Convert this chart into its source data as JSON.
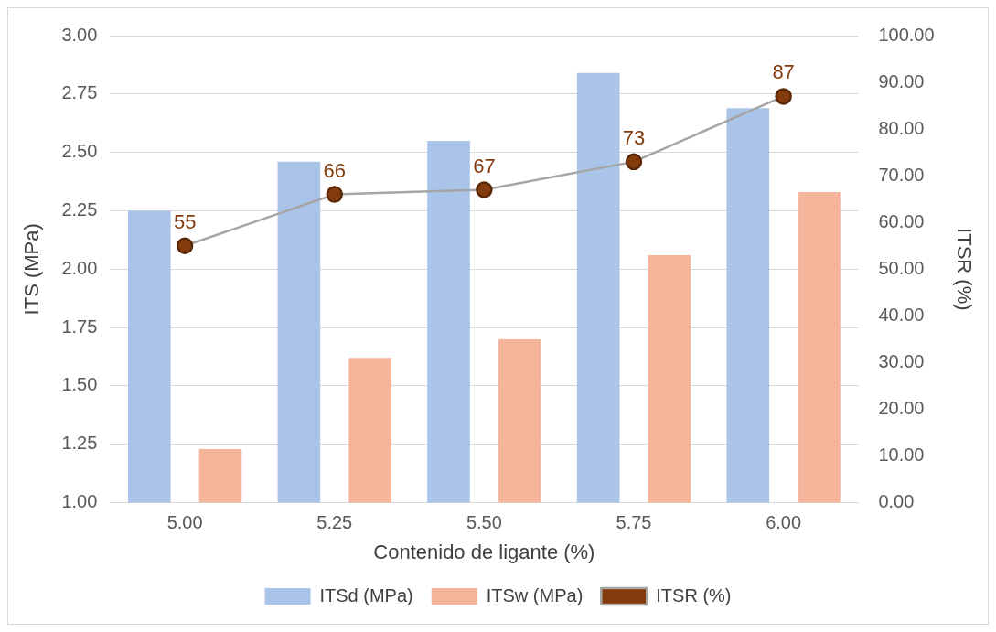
{
  "chart_data": {
    "type": "bar",
    "xlabel": "Contenido de ligante (%)",
    "ylabel": "ITS (MPa)",
    "y2label": "ITSR (%)",
    "categories": [
      "5.00",
      "5.25",
      "5.50",
      "5.75",
      "6.00"
    ],
    "series": [
      {
        "name": "ITSd (MPa)",
        "color": "#a9c4e8",
        "values": [
          2.25,
          2.46,
          2.55,
          2.84,
          2.69
        ]
      },
      {
        "name": "ITSw (MPa)",
        "color": "#f4b59a",
        "values": [
          1.23,
          1.62,
          1.7,
          2.06,
          2.33
        ]
      },
      {
        "name": "ITSR (%)",
        "type": "line",
        "axis": "y2",
        "color": "#a5a5a5",
        "values": [
          55,
          66,
          67,
          73,
          87
        ],
        "value_labels": [
          "55",
          "66",
          "67",
          "73",
          "87"
        ]
      }
    ],
    "ylim": [
      1,
      3
    ],
    "yticks": [
      {
        "value": 1,
        "label": "1.00"
      },
      {
        "value": 1.25,
        "label": "1.25"
      },
      {
        "value": 1.5,
        "label": "1.50"
      },
      {
        "value": 1.75,
        "label": "1.75"
      },
      {
        "value": 2,
        "label": "2.00"
      },
      {
        "value": 2.25,
        "label": "2.25"
      },
      {
        "value": 2.5,
        "label": "2.50"
      },
      {
        "value": 2.75,
        "label": "2.75"
      },
      {
        "value": 3,
        "label": "3.00"
      }
    ],
    "y2lim": [
      0,
      100
    ],
    "y2ticks": [
      {
        "value": 0,
        "label": "0.00"
      },
      {
        "value": 10,
        "label": "10.00"
      },
      {
        "value": 20,
        "label": "20.00"
      },
      {
        "value": 30,
        "label": "30.00"
      },
      {
        "value": 40,
        "label": "40.00"
      },
      {
        "value": 50,
        "label": "50.00"
      },
      {
        "value": 60,
        "label": "60.00"
      },
      {
        "value": 70,
        "label": "70.00"
      },
      {
        "value": 80,
        "label": "80.00"
      },
      {
        "value": 90,
        "label": "90.00"
      },
      {
        "value": 100,
        "label": "100.00"
      }
    ],
    "grid": "y",
    "legend": "bottom",
    "marker": "circle",
    "line_style": "solid"
  }
}
